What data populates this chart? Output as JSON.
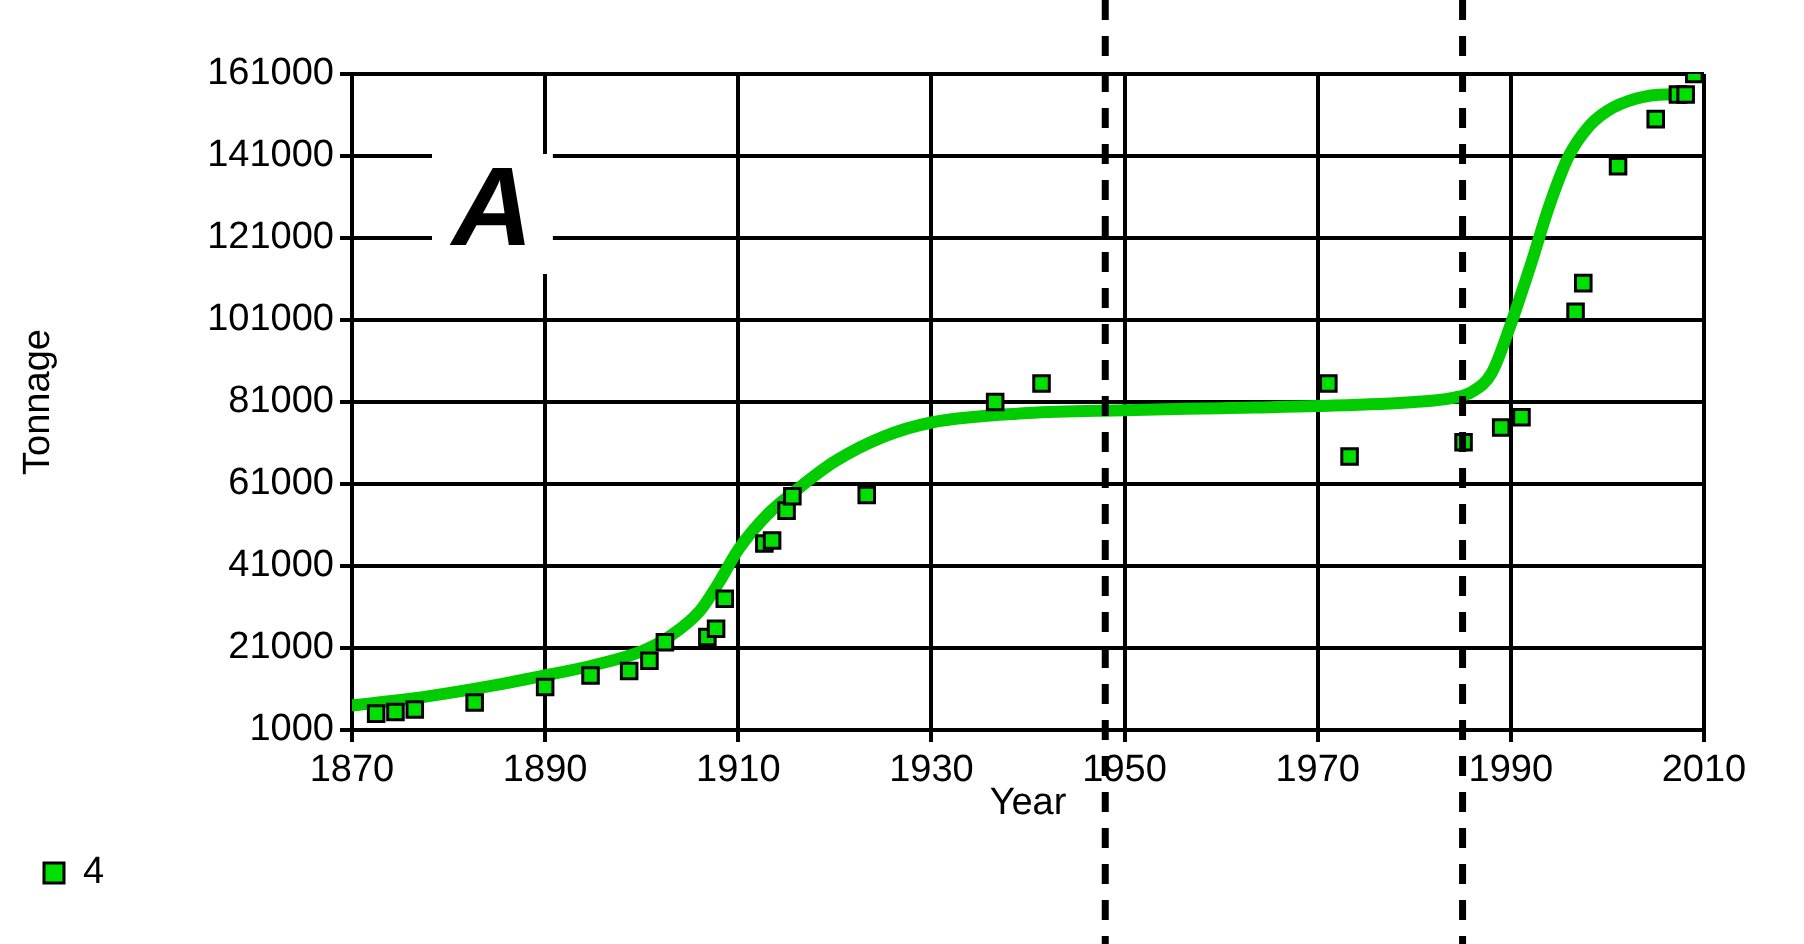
{
  "chart_data": {
    "type": "scatter",
    "xlabel": "Year",
    "ylabel": "Tonnage",
    "annotations": [
      "A"
    ],
    "xlim": [
      1870,
      2010
    ],
    "xticks": [
      1870,
      1890,
      1910,
      1930,
      1950,
      1970,
      1990,
      2010
    ],
    "ylim": [
      1000,
      161000
    ],
    "yticks": [
      1000,
      21000,
      41000,
      61000,
      81000,
      101000,
      121000,
      141000,
      161000
    ],
    "grid": true,
    "legend": "bottom left",
    "ref_lines": [
      {
        "axis": "x",
        "value": 1948,
        "color": "#000000",
        "line_style": "dashed"
      },
      {
        "axis": "x",
        "value": 1985,
        "color": "#000000",
        "line_style": "dashed"
      }
    ],
    "series": [
      {
        "name": "4",
        "type": "scatter",
        "marker": "square",
        "color": "#00e000",
        "x": [
          1872.5,
          1874.5,
          1876.5,
          1882.7,
          1890,
          1894.7,
          1898.7,
          1900.8,
          1902.4,
          1906.8,
          1907.7,
          1908.6,
          1912.7,
          1913.5,
          1915,
          1915.6,
          1923.3,
          1936.6,
          1941.4,
          1971.1,
          1973.3,
          1985.1,
          1989,
          1991.1,
          1996.7,
          1997.5,
          2001.1,
          2005,
          2007.3,
          2008.1,
          2009
        ],
        "values": [
          5000,
          5400,
          6000,
          7700,
          11500,
          14300,
          15400,
          17900,
          22400,
          23700,
          25700,
          33000,
          46500,
          47200,
          54500,
          58000,
          58300,
          81000,
          85500,
          85500,
          67700,
          71200,
          74800,
          77300,
          103000,
          110000,
          138500,
          150000,
          156000,
          156000,
          161000
        ]
      },
      {
        "type": "line",
        "marker": "none",
        "line_style": "solid",
        "color": "#00cc00",
        "x": [
          1870,
          1875,
          1880,
          1885,
          1890,
          1895,
          1900,
          1903,
          1906,
          1908,
          1910,
          1913,
          1916,
          1920,
          1925,
          1930,
          1940,
          1950,
          1960,
          1970,
          1980,
          1984,
          1986,
          1988,
          1990,
          1992,
          1994,
          1996,
          1998,
          2000,
          2003,
          2006,
          2008
        ],
        "values": [
          7000,
          8300,
          10000,
          12000,
          14300,
          16800,
          20200,
          24000,
          30000,
          37000,
          45000,
          53500,
          59500,
          66500,
          72500,
          76000,
          78300,
          79000,
          79500,
          80000,
          81000,
          82000,
          83500,
          88000,
          100000,
          114000,
          129000,
          141000,
          148000,
          152000,
          155000,
          156000,
          156000
        ]
      }
    ]
  }
}
